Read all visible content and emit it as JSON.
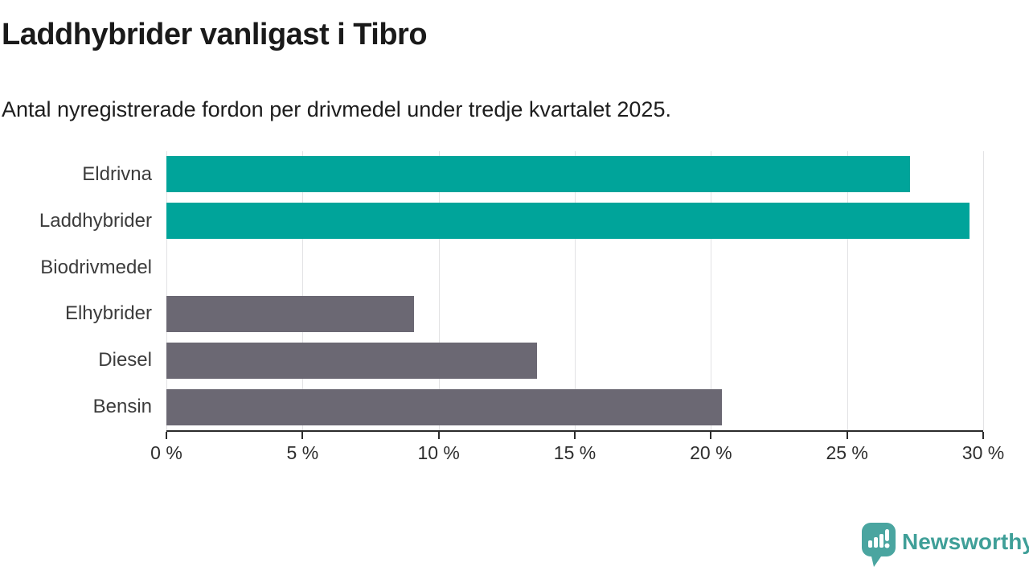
{
  "header": {
    "title": "Laddhybrider vanligast i Tibro",
    "subtitle": "Antal nyregistrerade fordon per drivmedel under tredje kvartalet 2025."
  },
  "chart_data": {
    "type": "bar",
    "orientation": "horizontal",
    "title": "Laddhybrider vanligast i Tibro",
    "subtitle": "Antal nyregistrerade fordon per drivmedel under tredje kvartalet 2025.",
    "categories": [
      "Eldrivna",
      "Laddhybrider",
      "Biodrivmedel",
      "Elhybrider",
      "Diesel",
      "Bensin"
    ],
    "values": [
      27.3,
      29.5,
      0,
      9.1,
      13.6,
      20.4
    ],
    "unit": "%",
    "xlabel": "",
    "ylabel": "",
    "xlim": [
      0,
      30
    ],
    "x_ticks": [
      0,
      5,
      10,
      15,
      20,
      25,
      30
    ],
    "x_tick_labels": [
      "0 %",
      "5 %",
      "10 %",
      "15 %",
      "20 %",
      "25 %",
      "30 %"
    ],
    "grid": "vertical",
    "legend": "none",
    "colors": {
      "highlight": "#00a49a",
      "neutral": "#6b6873",
      "bar_colors": [
        "#00a49a",
        "#00a49a",
        "#6b6873",
        "#6b6873",
        "#6b6873",
        "#6b6873"
      ],
      "gridline": "#e2e2e4",
      "axis": "#2b2b2b"
    }
  },
  "footer": {
    "brand": "Newsworthy",
    "logo_color": "#4aa5a0",
    "brand_color": "#3f9f98"
  }
}
